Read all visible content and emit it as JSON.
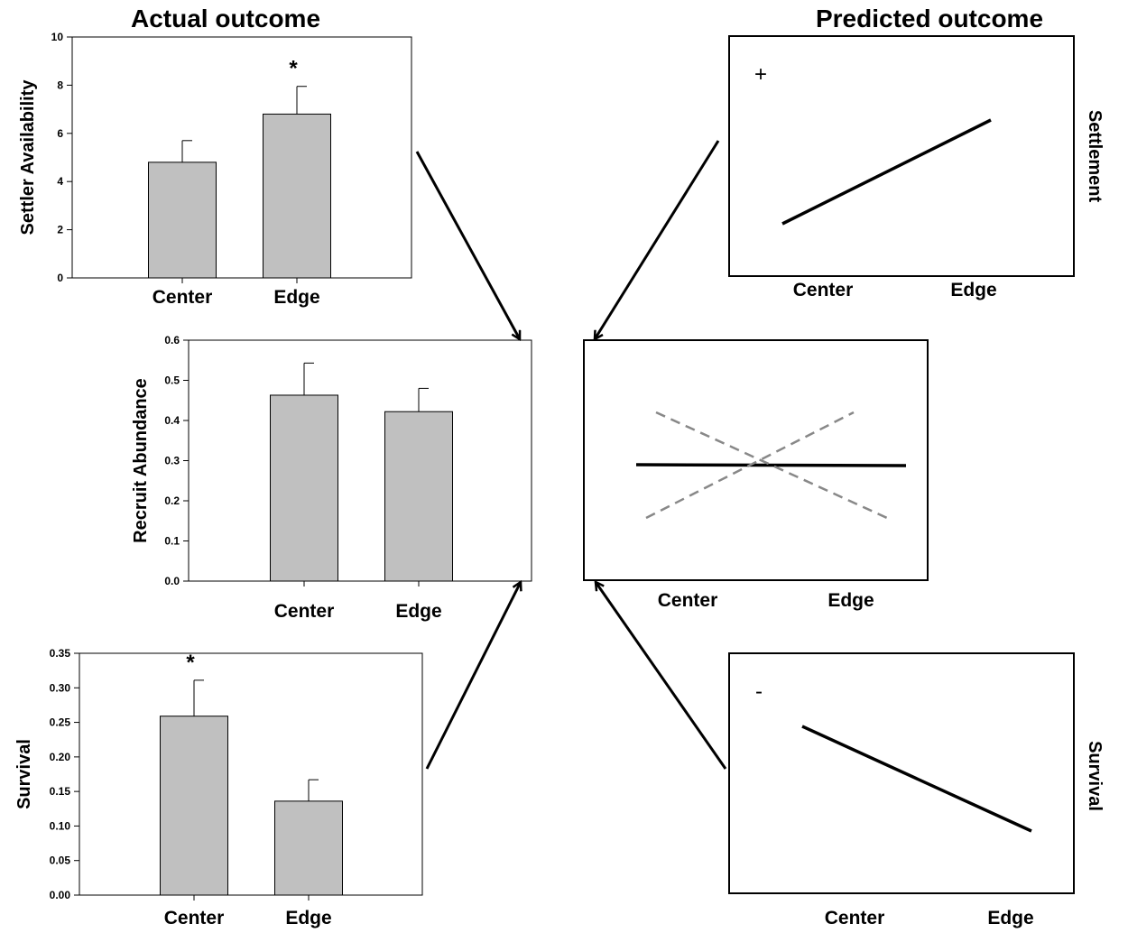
{
  "headings": {
    "actual": "Actual outcome",
    "predicted": "Predicted outcome"
  },
  "colors": {
    "bar_fill": "#c0c0c0",
    "bar_stroke": "#000000",
    "line": "#000000",
    "dashed_line": "#888888"
  },
  "chart_data": [
    {
      "id": "settler-availability",
      "type": "bar",
      "categories": [
        "Center",
        "Edge"
      ],
      "values": [
        4.8,
        6.8
      ],
      "errors": [
        0.9,
        1.15
      ],
      "significance": [
        "",
        "*"
      ],
      "ylabel": "Settler Availability",
      "ylim": [
        0,
        10
      ],
      "yticks": [
        "0",
        "2",
        "4",
        "6",
        "8",
        "10"
      ],
      "ytick_values": [
        0,
        2,
        4,
        6,
        8,
        10
      ]
    },
    {
      "id": "recruit-abundance",
      "type": "bar",
      "categories": [
        "Center",
        "Edge"
      ],
      "values": [
        0.463,
        0.422
      ],
      "errors": [
        0.08,
        0.058
      ],
      "significance": [
        "",
        ""
      ],
      "ylabel": "Recruit Abundance",
      "ylim": [
        0,
        0.6
      ],
      "yticks": [
        "0.0",
        "0.1",
        "0.2",
        "0.3",
        "0.4",
        "0.5",
        "0.6"
      ],
      "ytick_values": [
        0,
        0.1,
        0.2,
        0.3,
        0.4,
        0.5,
        0.6
      ]
    },
    {
      "id": "survival",
      "type": "bar",
      "categories": [
        "Center",
        "Edge"
      ],
      "values": [
        0.259,
        0.136
      ],
      "errors": [
        0.052,
        0.031
      ],
      "significance": [
        "*",
        ""
      ],
      "ylabel": "Survival",
      "ylim": [
        0,
        0.35
      ],
      "yticks": [
        "0.00",
        "0.05",
        "0.10",
        "0.15",
        "0.20",
        "0.25",
        "0.30",
        "0.35"
      ],
      "ytick_values": [
        0,
        0.05,
        0.1,
        0.15,
        0.2,
        0.25,
        0.3,
        0.35
      ]
    },
    {
      "id": "predicted-settlement",
      "type": "line",
      "categories": [
        "Center",
        "Edge"
      ],
      "trend": "positive",
      "sign": "+",
      "side_label": "Settlement"
    },
    {
      "id": "predicted-recruitment",
      "type": "line",
      "categories": [
        "Center",
        "Edge"
      ],
      "lines": [
        "flat",
        "increasing (dashed)",
        "decreasing (dashed)"
      ]
    },
    {
      "id": "predicted-survival",
      "type": "line",
      "categories": [
        "Center",
        "Edge"
      ],
      "trend": "negative",
      "sign": "-",
      "side_label": "Survival"
    }
  ]
}
